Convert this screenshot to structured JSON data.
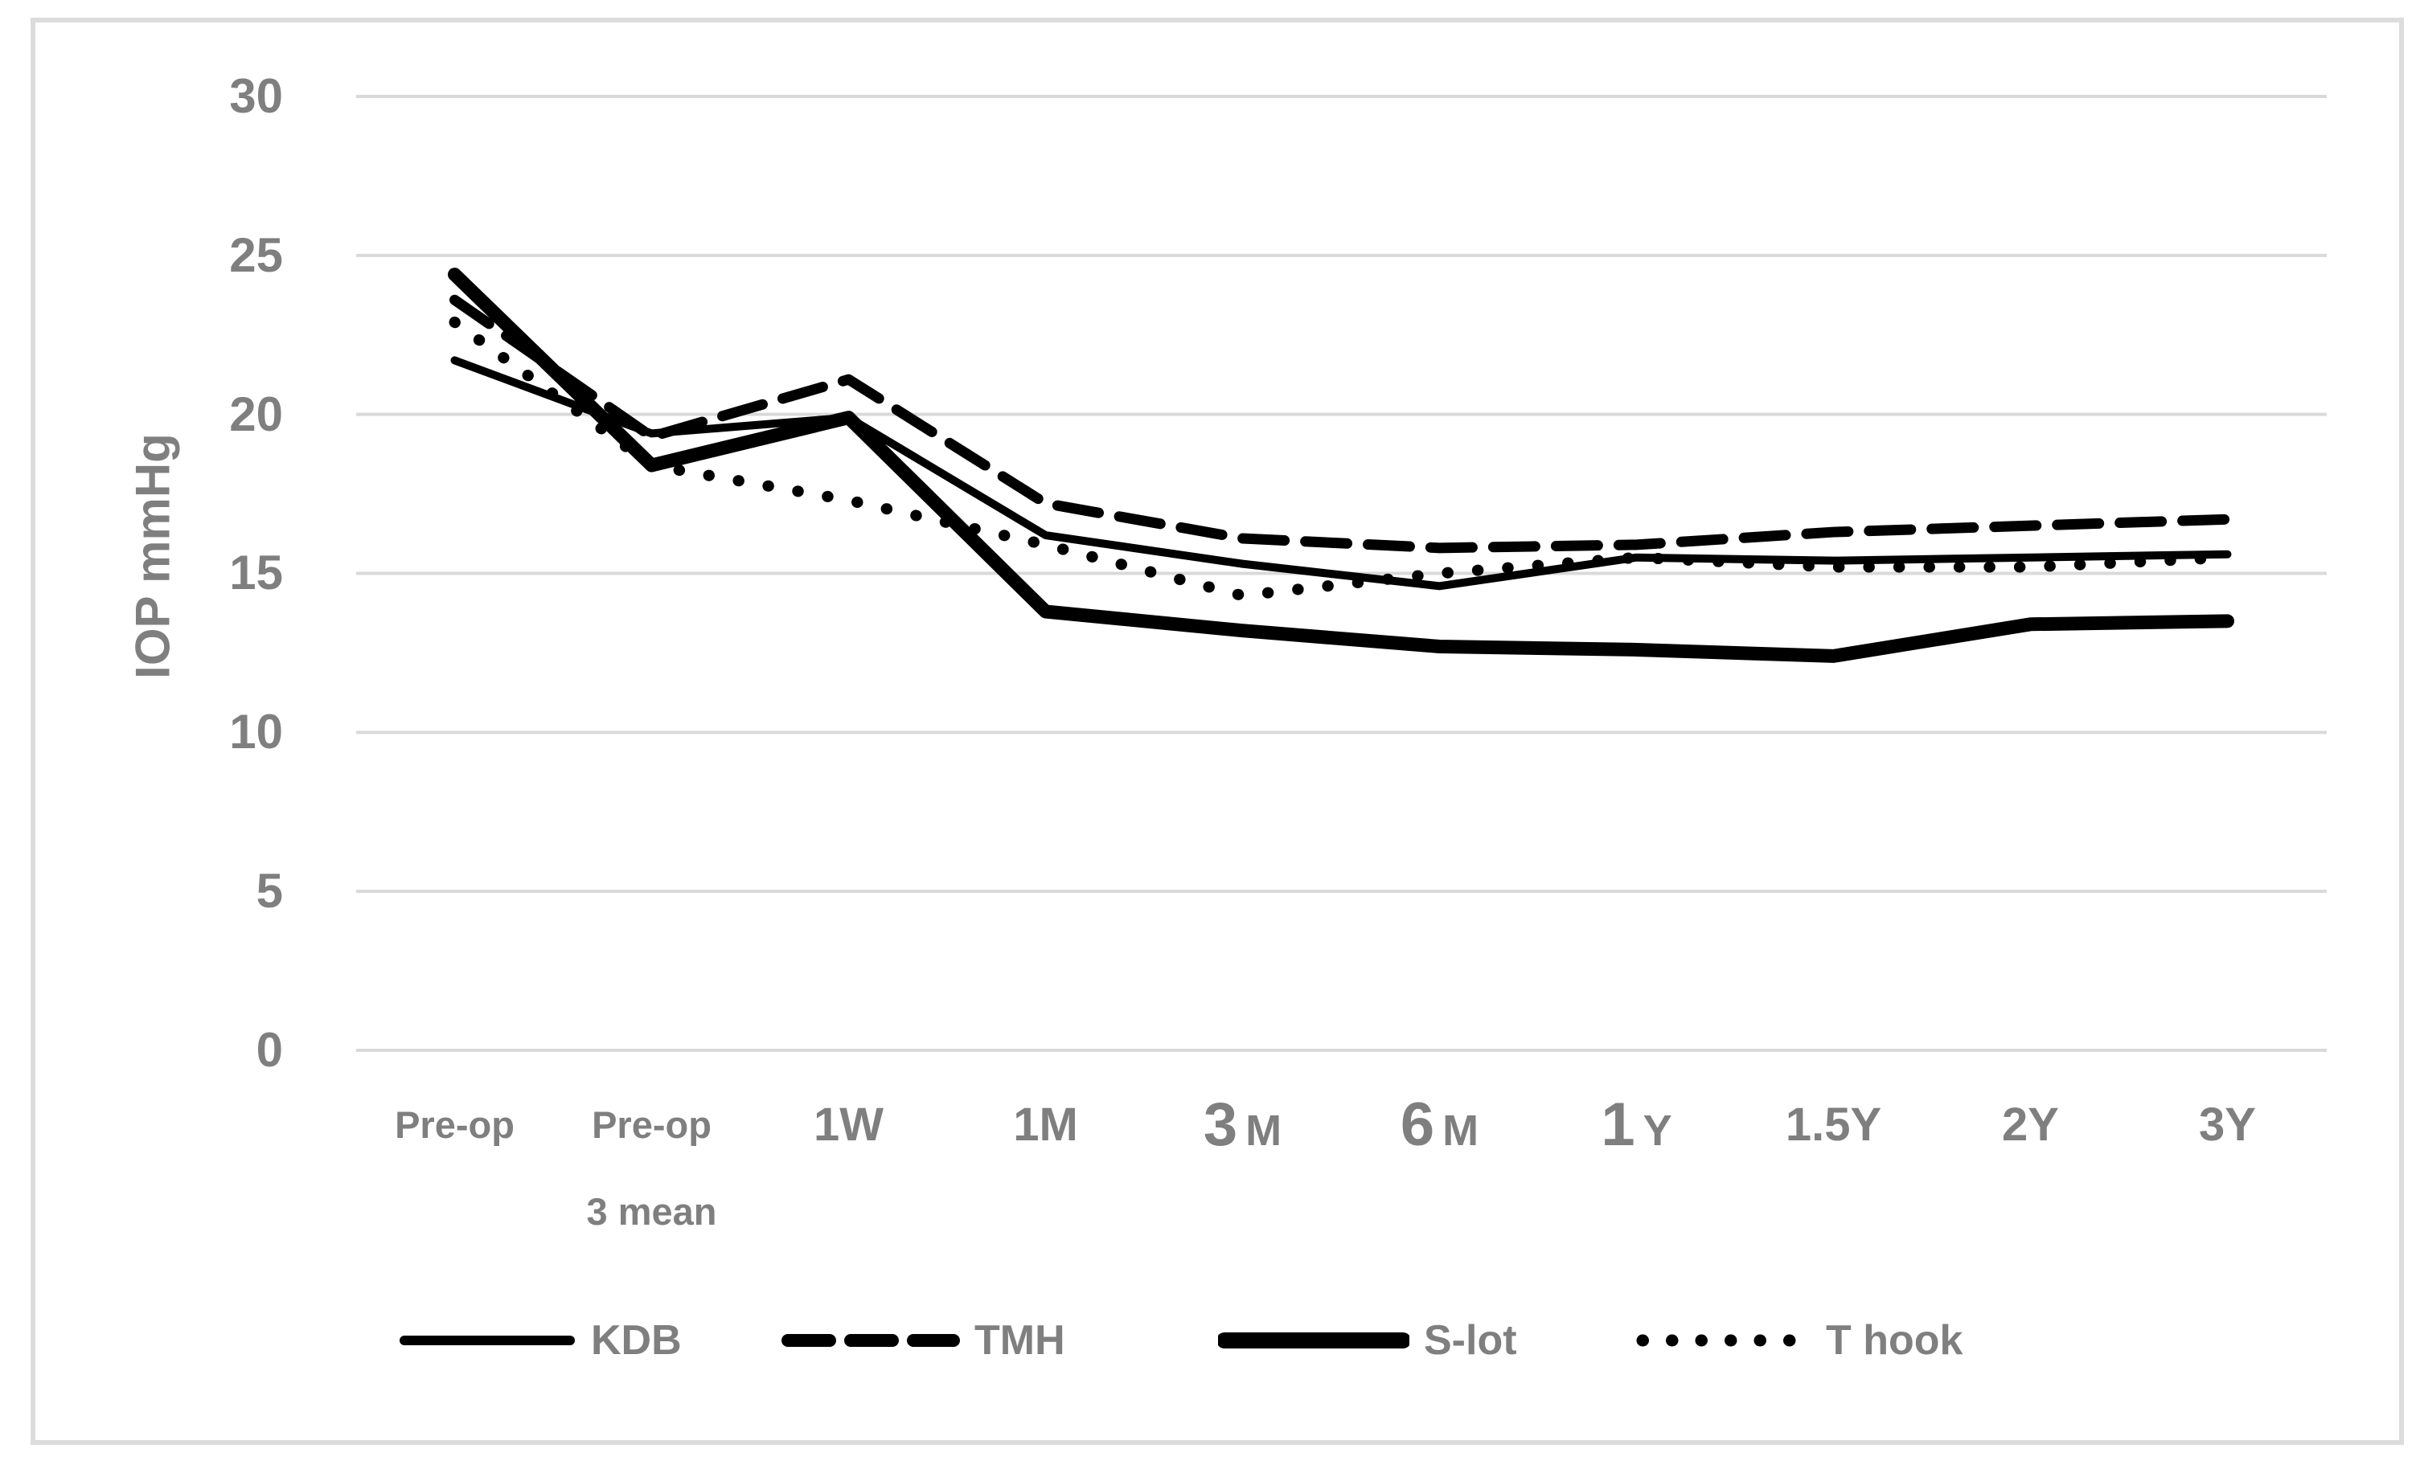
{
  "chart_data": {
    "type": "line",
    "ylabel": "IOP mmHg",
    "ylim": [
      0,
      30
    ],
    "y_ticks": [
      30,
      25,
      20,
      15,
      10,
      5,
      0
    ],
    "grid": true,
    "legend_position": "bottom",
    "categories": [
      {
        "label": "Pre-op",
        "main": "Pre-op",
        "size": "sm"
      },
      {
        "label": "Pre-op 3 mean",
        "main": "Pre-op",
        "line2": "3 mean",
        "size": "sm"
      },
      {
        "label": "1W",
        "main": "1W",
        "size": "md"
      },
      {
        "label": "1M",
        "main": "1M",
        "size": "md"
      },
      {
        "label": "3 M",
        "main": "3",
        "suffix": "M",
        "size": "lg"
      },
      {
        "label": "6 M",
        "main": "6",
        "suffix": "M",
        "size": "lg"
      },
      {
        "label": "1 Y",
        "main": "1",
        "suffix": "Y",
        "size": "lg"
      },
      {
        "label": "1.5Y",
        "main": "1.5Y",
        "size": "md"
      },
      {
        "label": "2Y",
        "main": "2Y",
        "size": "md"
      },
      {
        "label": "3Y",
        "main": "3Y",
        "size": "md"
      }
    ],
    "series": [
      {
        "name": "KDB",
        "line_style": "solid",
        "thickness": "thin",
        "color": "#000000",
        "values": [
          21.7,
          19.4,
          19.9,
          16.2,
          15.3,
          14.6,
          15.5,
          15.4,
          15.5,
          15.6
        ]
      },
      {
        "name": "TMH",
        "line_style": "dashed",
        "thickness": "medium",
        "color": "#000000",
        "values": [
          23.6,
          19.3,
          21.1,
          17.2,
          16.1,
          15.8,
          15.9,
          16.3,
          16.5,
          16.7
        ]
      },
      {
        "name": "S-lot",
        "line_style": "solid",
        "thickness": "thick",
        "color": "#000000",
        "values": [
          24.4,
          18.4,
          19.9,
          13.8,
          13.2,
          12.7,
          12.6,
          12.4,
          13.4,
          13.5
        ]
      },
      {
        "name": "T hook",
        "line_style": "dotted",
        "thickness": "medium",
        "color": "#000000",
        "values": [
          22.9,
          18.4,
          17.3,
          15.9,
          14.3,
          15.0,
          15.5,
          15.2,
          15.2,
          15.5
        ]
      }
    ],
    "colors": {
      "line": "#000000",
      "text": "#7f7f7f",
      "grid": "#d9d9d9",
      "border": "#dcdcdc",
      "background": "#ffffff"
    }
  }
}
